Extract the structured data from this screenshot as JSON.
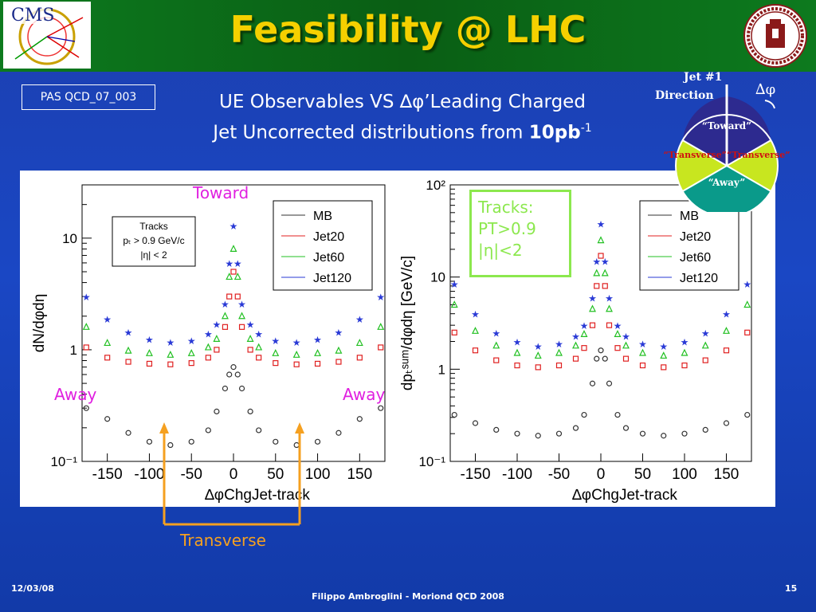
{
  "header": {
    "title": "Feasibility @ LHC",
    "cms_logo_text": "CMS"
  },
  "pas_label": "PAS QCD_07_003",
  "subtitle": {
    "line1": "UE Observables VS ∆φ’Leading Charged",
    "line2_prefix": "Jet Uncorrected distributions from ",
    "line2_bold": "10pb",
    "line2_sup": "-1"
  },
  "diagram": {
    "jet_label_1": "Jet #1",
    "jet_label_2": "Direction",
    "delta_phi": "∆φ",
    "toward": "“Toward”",
    "transverse": "“Transverse”“Transverse”",
    "away": "“Away”",
    "colors": {
      "toward": "#2d2a8f",
      "transverse": "#c8e61f",
      "away": "#0a9a8a"
    }
  },
  "overlays": {
    "toward": "Toward",
    "away_left": "Away",
    "away_right": "Away",
    "transverse": "Transverse",
    "tracks_lines": [
      "Tracks:",
      "PT>0.9",
      "|η|<2"
    ]
  },
  "footer": {
    "date": "12/03/08",
    "author": "Filippo Ambroglini - Moriond QCD 2008",
    "page": "15"
  },
  "chart_data": [
    {
      "type": "scatter",
      "title": "",
      "xlabel": "∆φChgJet-track",
      "ylabel": "dN/dφdη",
      "log_y": true,
      "xlim": [
        -180,
        180
      ],
      "ylim": [
        0.1,
        30
      ],
      "x_ticks": [
        "-150",
        "-100",
        "-50",
        "0",
        "50",
        "100",
        "150"
      ],
      "y_ticks": [
        "10⁻¹",
        "1",
        "10"
      ],
      "legend_title": [
        "Tracks",
        "pₜ > 0.9 GeV/c",
        "|η| < 2"
      ],
      "legend_placement": "top-right",
      "series": [
        {
          "name": "MB",
          "color": "#333333",
          "marker": "circle",
          "x": [
            -175,
            -150,
            -125,
            -100,
            -75,
            -50,
            -30,
            -20,
            -10,
            -5,
            0,
            5,
            10,
            20,
            30,
            50,
            75,
            100,
            125,
            150,
            175
          ],
          "y": [
            0.3,
            0.24,
            0.18,
            0.15,
            0.14,
            0.15,
            0.19,
            0.28,
            0.45,
            0.6,
            0.7,
            0.6,
            0.45,
            0.28,
            0.19,
            0.15,
            0.14,
            0.15,
            0.18,
            0.24,
            0.3
          ]
        },
        {
          "name": "Jet20",
          "color": "#e02020",
          "marker": "square",
          "x": [
            -175,
            -150,
            -125,
            -100,
            -75,
            -50,
            -30,
            -20,
            -10,
            -5,
            0,
            5,
            10,
            20,
            30,
            50,
            75,
            100,
            125,
            150,
            175
          ],
          "y": [
            1.05,
            0.85,
            0.78,
            0.75,
            0.74,
            0.76,
            0.85,
            1.0,
            1.6,
            3.0,
            5.0,
            3.0,
            1.6,
            1.0,
            0.85,
            0.76,
            0.74,
            0.75,
            0.78,
            0.85,
            1.05
          ]
        },
        {
          "name": "Jet60",
          "color": "#22c022",
          "marker": "triangle",
          "x": [
            -175,
            -150,
            -125,
            -100,
            -75,
            -50,
            -30,
            -20,
            -10,
            -5,
            0,
            5,
            10,
            20,
            30,
            50,
            75,
            100,
            125,
            150,
            175
          ],
          "y": [
            1.6,
            1.15,
            0.98,
            0.93,
            0.9,
            0.93,
            1.05,
            1.25,
            2.0,
            4.5,
            8.0,
            4.5,
            2.0,
            1.25,
            1.05,
            0.93,
            0.9,
            0.93,
            0.98,
            1.15,
            1.6
          ]
        },
        {
          "name": "Jet120",
          "color": "#2a3ad6",
          "marker": "star",
          "x": [
            -175,
            -150,
            -125,
            -100,
            -75,
            -50,
            -30,
            -20,
            -10,
            -5,
            0,
            5,
            10,
            20,
            30,
            50,
            75,
            100,
            125,
            150,
            175
          ],
          "y": [
            3.0,
            1.9,
            1.45,
            1.25,
            1.18,
            1.22,
            1.4,
            1.7,
            2.6,
            6.0,
            13.0,
            6.0,
            2.6,
            1.7,
            1.4,
            1.22,
            1.18,
            1.25,
            1.45,
            1.9,
            3.0
          ]
        }
      ]
    },
    {
      "type": "scatter",
      "title": "",
      "xlabel": "∆φChgJet-track",
      "ylabel": "dpₜˢᵘᵐ/dφdη [GeV/c]",
      "log_y": true,
      "xlim": [
        -180,
        180
      ],
      "ylim": [
        0.1,
        100
      ],
      "x_ticks": [
        "-150",
        "-100",
        "-50",
        "0",
        "50",
        "100",
        "150"
      ],
      "y_ticks": [
        "10⁻¹",
        "1",
        "10",
        "10²"
      ],
      "legend_placement": "top-right",
      "series": [
        {
          "name": "MB",
          "color": "#333333",
          "marker": "circle",
          "x": [
            -175,
            -150,
            -125,
            -100,
            -75,
            -50,
            -30,
            -20,
            -10,
            -5,
            0,
            5,
            10,
            20,
            30,
            50,
            75,
            100,
            125,
            150,
            175
          ],
          "y": [
            0.32,
            0.26,
            0.22,
            0.2,
            0.19,
            0.2,
            0.23,
            0.32,
            0.7,
            1.3,
            1.6,
            1.3,
            0.7,
            0.32,
            0.23,
            0.2,
            0.19,
            0.2,
            0.22,
            0.26,
            0.32
          ]
        },
        {
          "name": "Jet20",
          "color": "#e02020",
          "marker": "square",
          "x": [
            -175,
            -150,
            -125,
            -100,
            -75,
            -50,
            -30,
            -20,
            -10,
            -5,
            0,
            5,
            10,
            20,
            30,
            50,
            75,
            100,
            125,
            150,
            175
          ],
          "y": [
            2.5,
            1.6,
            1.25,
            1.1,
            1.05,
            1.1,
            1.3,
            1.7,
            3.0,
            8.0,
            17.0,
            8.0,
            3.0,
            1.7,
            1.3,
            1.1,
            1.05,
            1.1,
            1.25,
            1.6,
            2.5
          ]
        },
        {
          "name": "Jet60",
          "color": "#22c022",
          "marker": "triangle",
          "x": [
            -175,
            -150,
            -125,
            -100,
            -75,
            -50,
            -30,
            -20,
            -10,
            -5,
            0,
            5,
            10,
            20,
            30,
            50,
            75,
            100,
            125,
            150,
            175
          ],
          "y": [
            5.0,
            2.6,
            1.8,
            1.5,
            1.4,
            1.5,
            1.8,
            2.4,
            4.5,
            11.0,
            25.0,
            11.0,
            4.5,
            2.4,
            1.8,
            1.5,
            1.4,
            1.5,
            1.8,
            2.6,
            5.0
          ]
        },
        {
          "name": "Jet120",
          "color": "#2a3ad6",
          "marker": "star",
          "x": [
            -175,
            -150,
            -125,
            -100,
            -75,
            -50,
            -30,
            -20,
            -10,
            -5,
            0,
            5,
            10,
            20,
            30,
            50,
            75,
            100,
            125,
            150,
            175
          ],
          "y": [
            8.5,
            4.0,
            2.5,
            2.0,
            1.8,
            1.9,
            2.3,
            3.0,
            6.0,
            15.0,
            38.0,
            15.0,
            6.0,
            3.0,
            2.3,
            1.9,
            1.8,
            2.0,
            2.5,
            4.0,
            8.5
          ]
        }
      ]
    }
  ]
}
